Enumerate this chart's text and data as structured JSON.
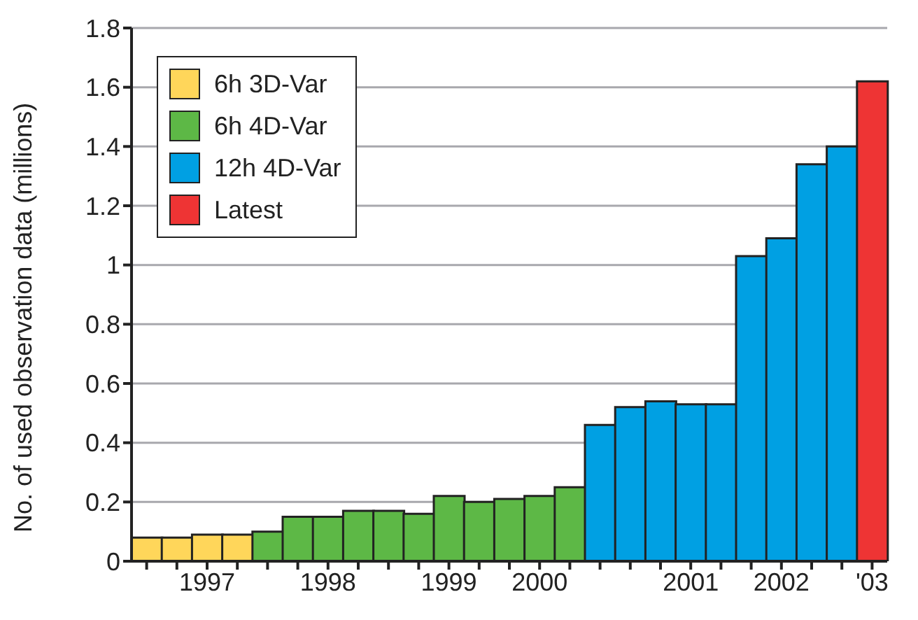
{
  "chart_data": {
    "type": "bar",
    "ylabel": "No. of used observation data (millions)",
    "categories": [
      null,
      null,
      "1997",
      null,
      null,
      null,
      "1998",
      null,
      null,
      null,
      "1999",
      null,
      null,
      "2000",
      null,
      null,
      null,
      null,
      "2001",
      null,
      null,
      "2002",
      null,
      null,
      "'03"
    ],
    "series": [
      {
        "name": "6h 3D-Var",
        "color": "#ffd65a",
        "values": [
          0.08,
          0.08,
          0.09,
          0.09,
          null,
          null,
          null,
          null,
          null,
          null,
          null,
          null,
          null,
          null,
          null,
          null,
          null,
          null,
          null,
          null,
          null,
          null,
          null,
          null,
          null
        ]
      },
      {
        "name": "6h 4D-Var",
        "color": "#5db846",
        "values": [
          null,
          null,
          null,
          null,
          0.1,
          0.15,
          0.15,
          0.17,
          0.17,
          0.16,
          0.22,
          0.2,
          0.21,
          0.22,
          0.25,
          null,
          null,
          null,
          null,
          null,
          null,
          null,
          null,
          null,
          null
        ]
      },
      {
        "name": "12h 4D-Var",
        "color": "#00a0e3",
        "values": [
          null,
          null,
          null,
          null,
          null,
          null,
          null,
          null,
          null,
          null,
          null,
          null,
          null,
          null,
          null,
          0.46,
          0.52,
          0.54,
          0.53,
          0.53,
          1.03,
          1.09,
          1.34,
          1.4,
          null
        ]
      },
      {
        "name": "Latest",
        "color": "#ee3434",
        "values": [
          null,
          null,
          null,
          null,
          null,
          null,
          null,
          null,
          null,
          null,
          null,
          null,
          null,
          null,
          null,
          null,
          null,
          null,
          null,
          null,
          null,
          null,
          null,
          null,
          1.62
        ]
      }
    ],
    "stacked": true,
    "ylim": [
      0,
      1.8
    ],
    "yticks": [
      0,
      0.2,
      0.4,
      0.6,
      0.8,
      1,
      1.2,
      1.4,
      1.6,
      1.8
    ],
    "grid": "y",
    "legend": "top left"
  }
}
